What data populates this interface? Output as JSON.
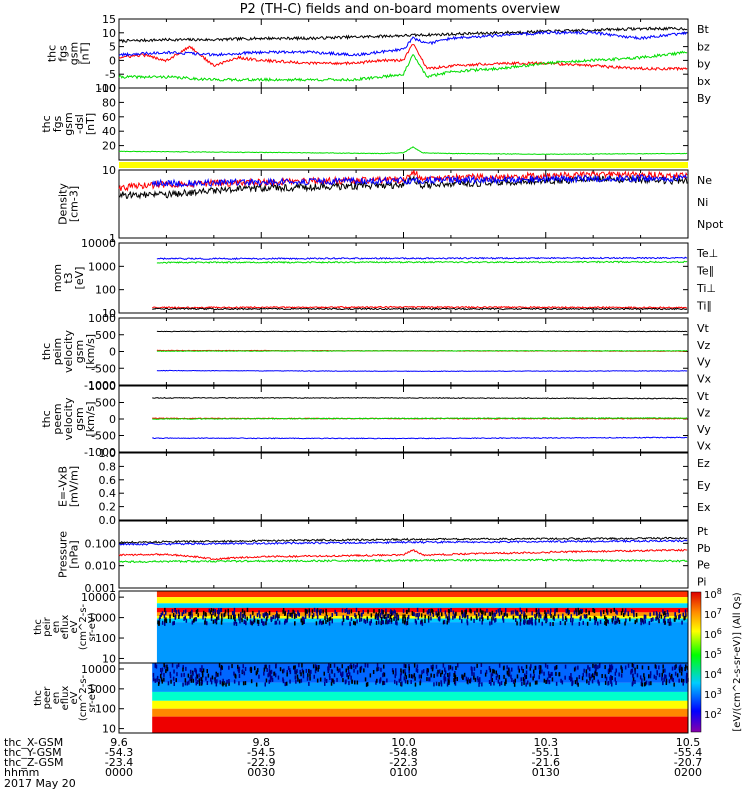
{
  "title": "P2 (TH-C) fields and on-board moments overview",
  "colors": {
    "black": "#000000",
    "red": "#ff0000",
    "green": "#00dd00",
    "blue": "#0000ff",
    "yellow": "#ffff00"
  },
  "chart_data": {
    "type": "line",
    "x_range": [
      0,
      120
    ],
    "x_ticks": [
      {
        "t": 0,
        "x_gsm": "9.6",
        "y_gsm": "-54.3",
        "z_gsm": "-23.4",
        "hhmm": "0000"
      },
      {
        "t": 30,
        "x_gsm": "9.8",
        "y_gsm": "-54.5",
        "z_gsm": "-22.9",
        "hhmm": "0030"
      },
      {
        "t": 60,
        "x_gsm": "10.0",
        "y_gsm": "-54.8",
        "z_gsm": "-22.3",
        "hhmm": "0100"
      },
      {
        "t": 90,
        "x_gsm": "10.3",
        "y_gsm": "-55.1",
        "z_gsm": "-21.6",
        "hhmm": "0130"
      },
      {
        "t": 120,
        "x_gsm": "10.5",
        "y_gsm": "-55.4",
        "z_gsm": "-20.7",
        "hhmm": "0200"
      }
    ],
    "x_row_labels": [
      "thc_X-GSM",
      "thc_Y-GSM",
      "thc_Z-GSM",
      "hhmm"
    ],
    "date_label": "2017 May 20",
    "panels": [
      {
        "id": "fgs",
        "ylabel": [
          "thc",
          "fgs",
          "gsm",
          "[nT]"
        ],
        "scale": "linear",
        "ylim": [
          -10,
          15
        ],
        "yticks": [
          "15",
          "10",
          "5",
          "0",
          "-5",
          "-10"
        ],
        "ytick_vals": [
          15,
          10,
          5,
          0,
          -5,
          -10
        ],
        "legend": [
          {
            "name": "Bt",
            "color": "black"
          },
          {
            "name": "bz",
            "color": "red"
          },
          {
            "name": "by",
            "color": "green"
          },
          {
            "name": "bx",
            "color": "blue"
          }
        ],
        "series": [
          {
            "name": "Bt",
            "color": "black",
            "t": [
              0,
              10,
              20,
              30,
              40,
              50,
              60,
              70,
              80,
              90,
              100,
              110,
              120
            ],
            "y": [
              7,
              7.5,
              7.5,
              8,
              8,
              8.5,
              9,
              9.5,
              10,
              10.5,
              11,
              11.5,
              11.5
            ]
          },
          {
            "name": "bz",
            "color": "red",
            "t": [
              0,
              5,
              10,
              15,
              20,
              25,
              30,
              40,
              50,
              55,
              60,
              62,
              65,
              70,
              80,
              90,
              100,
              110,
              120
            ],
            "y": [
              1,
              2,
              0,
              5,
              -2,
              1,
              0,
              -1,
              -1,
              0,
              0,
              6,
              -3,
              -2,
              -1,
              -1,
              -2,
              -3,
              -3
            ]
          },
          {
            "name": "by",
            "color": "green",
            "t": [
              0,
              10,
              20,
              30,
              40,
              50,
              55,
              60,
              62,
              65,
              70,
              80,
              90,
              100,
              110,
              120
            ],
            "y": [
              -6,
              -6,
              -7,
              -7,
              -7,
              -7,
              -6,
              -5,
              2,
              -6,
              -4,
              -3,
              -1,
              0,
              1,
              3
            ]
          },
          {
            "name": "bx",
            "color": "blue",
            "t": [
              0,
              10,
              20,
              30,
              40,
              50,
              60,
              62,
              65,
              70,
              80,
              90,
              100,
              105,
              110,
              120
            ],
            "y": [
              2,
              3,
              2,
              3,
              3,
              2,
              4,
              8,
              6,
              8,
              9,
              10,
              10,
              9,
              8,
              10
            ]
          }
        ]
      },
      {
        "id": "fgs-dsl",
        "ylabel": [
          "thc",
          "fgs",
          "gsm",
          "-dsl",
          "[nT]"
        ],
        "scale": "linear",
        "ylim": [
          0,
          100
        ],
        "yticks": [
          "100",
          "80",
          "60",
          "40",
          "20"
        ],
        "ytick_vals": [
          100,
          80,
          60,
          40,
          20
        ],
        "legend": [
          {
            "name": "By",
            "color": "green"
          }
        ],
        "series": [
          {
            "name": "By",
            "color": "green",
            "t": [
              0,
              20,
              40,
              55,
              60,
              62,
              64,
              70,
              90,
              120
            ],
            "y": [
              12,
              11,
              10,
              9,
              10,
              18,
              10,
              9,
              8,
              9
            ]
          }
        ]
      },
      {
        "id": "density",
        "ylabel": [
          "Density",
          "[cm-3]"
        ],
        "scale": "log",
        "ylim": [
          1,
          10
        ],
        "yticks": [
          "10",
          "1"
        ],
        "ytick_vals": [
          10,
          1
        ],
        "legend": [
          {
            "name": "Ne",
            "color": "red"
          },
          {
            "name": "Ni",
            "color": "black"
          },
          {
            "name": "Npot",
            "color": "blue"
          }
        ],
        "series": [
          {
            "name": "Ne",
            "color": "red",
            "t": [
              0,
              10,
              20,
              30,
              40,
              50,
              60,
              62,
              64,
              70,
              80,
              90,
              100,
              110,
              120
            ],
            "y": [
              5.5,
              6.2,
              6.4,
              6.6,
              6.8,
              7,
              7.2,
              9.5,
              7.3,
              7.6,
              8,
              8.2,
              8.4,
              8.4,
              8.2
            ]
          },
          {
            "name": "Ni",
            "color": "black",
            "t": [
              0,
              10,
              20,
              30,
              40,
              50,
              60,
              62,
              64,
              70,
              80,
              90,
              100,
              110,
              120
            ],
            "y": [
              4.3,
              4.3,
              5,
              5.4,
              5.6,
              5.8,
              6,
              7.5,
              6,
              6.2,
              6.6,
              7,
              7.2,
              7.2,
              6.8
            ]
          },
          {
            "name": "Npot",
            "color": "blue",
            "t": [
              7,
              30,
              60,
              90,
              120
            ],
            "y": [
              6.3,
              6.6,
              7,
              7.4,
              7.6
            ]
          }
        ]
      },
      {
        "id": "temp",
        "ylabel": [
          "mom",
          "t3",
          "[eV]"
        ],
        "scale": "log",
        "ylim": [
          10,
          10000
        ],
        "yticks": [
          "10000",
          "1000",
          "100",
          "10"
        ],
        "ytick_vals": [
          10000,
          1000,
          100,
          10
        ],
        "legend": [
          {
            "name": "Te⊥",
            "color": "red"
          },
          {
            "name": "Te∥",
            "color": "black"
          },
          {
            "name": "Ti⊥",
            "color": "blue"
          },
          {
            "name": "Ti∥",
            "color": "green"
          }
        ],
        "series": [
          {
            "name": "Ti⊥",
            "color": "blue",
            "t": [
              8,
              60,
              120
            ],
            "y": [
              2100,
              2200,
              2300
            ]
          },
          {
            "name": "Ti∥",
            "color": "green",
            "t": [
              8,
              60,
              120
            ],
            "y": [
              1450,
              1500,
              1550
            ]
          },
          {
            "name": "Te⊥",
            "color": "red",
            "t": [
              7,
              60,
              120
            ],
            "y": [
              17,
              18,
              17
            ]
          },
          {
            "name": "Te∥",
            "color": "black",
            "t": [
              7,
              60,
              120
            ],
            "y": [
              15,
              15,
              15
            ]
          }
        ]
      },
      {
        "id": "peim",
        "ylabel": [
          "thc",
          "peim",
          "velocity",
          "gsm",
          "[km/s]"
        ],
        "scale": "linear",
        "ylim": [
          -1000,
          1000
        ],
        "yticks": [
          "1000",
          "500",
          "0",
          "-500",
          "-1000"
        ],
        "ytick_vals": [
          1000,
          500,
          0,
          -500,
          -1000
        ],
        "legend": [
          {
            "name": "Vt",
            "color": "black"
          },
          {
            "name": "Vz",
            "color": "red"
          },
          {
            "name": "Vy",
            "color": "green"
          },
          {
            "name": "Vx",
            "color": "blue"
          }
        ],
        "series": [
          {
            "name": "Vt",
            "color": "black",
            "t": [
              8,
              60,
              120
            ],
            "y": [
              600,
              600,
              600
            ]
          },
          {
            "name": "Vz",
            "color": "red",
            "t": [
              8,
              60,
              120
            ],
            "y": [
              30,
              20,
              10
            ]
          },
          {
            "name": "Vy",
            "color": "green",
            "t": [
              8,
              60,
              120
            ],
            "y": [
              10,
              20,
              20
            ]
          },
          {
            "name": "Vx",
            "color": "blue",
            "t": [
              8,
              60,
              120
            ],
            "y": [
              -570,
              -590,
              -580
            ]
          }
        ]
      },
      {
        "id": "peem",
        "ylabel": [
          "thc",
          "peem",
          "velocity",
          "gsm",
          "[km/s]"
        ],
        "scale": "linear",
        "ylim": [
          -1000,
          1000
        ],
        "yticks": [
          "1000",
          "500",
          "0",
          "-500",
          "-1000"
        ],
        "ytick_vals": [
          1000,
          500,
          0,
          -500,
          -1000
        ],
        "legend": [
          {
            "name": "Vt",
            "color": "black"
          },
          {
            "name": "Vz",
            "color": "red"
          },
          {
            "name": "Vy",
            "color": "green"
          },
          {
            "name": "Vx",
            "color": "blue"
          }
        ],
        "series": [
          {
            "name": "Vt",
            "color": "black",
            "t": [
              7,
              60,
              120
            ],
            "y": [
              640,
              640,
              620
            ]
          },
          {
            "name": "Vz",
            "color": "red",
            "t": [
              7,
              60,
              120
            ],
            "y": [
              20,
              10,
              10
            ]
          },
          {
            "name": "Vy",
            "color": "green",
            "t": [
              7,
              60,
              120
            ],
            "y": [
              0,
              20,
              30
            ]
          },
          {
            "name": "Vx",
            "color": "blue",
            "t": [
              7,
              60,
              120
            ],
            "y": [
              -580,
              -590,
              -560
            ]
          }
        ]
      },
      {
        "id": "efield",
        "ylabel": [
          "E=-VxB",
          "[mV/m]"
        ],
        "scale": "linear",
        "ylim": [
          0,
          1
        ],
        "yticks": [
          "1.0",
          "0.8",
          "0.6",
          "0.4",
          "0.2",
          "0.0"
        ],
        "ytick_vals": [
          1,
          0.8,
          0.6,
          0.4,
          0.2,
          0
        ],
        "legend": [
          {
            "name": "Ez",
            "color": "red"
          },
          {
            "name": "Ey",
            "color": "green"
          },
          {
            "name": "Ex",
            "color": "blue"
          }
        ],
        "series": []
      },
      {
        "id": "pressure",
        "ylabel": [
          "Pressure",
          "[nPa]"
        ],
        "scale": "log",
        "ylim": [
          0.001,
          1
        ],
        "yticks": [
          "0.100",
          "0.010",
          "0.001"
        ],
        "ytick_vals": [
          0.1,
          0.01,
          0.001
        ],
        "legend": [
          {
            "name": "Pt",
            "color": "black"
          },
          {
            "name": "Pb",
            "color": "red"
          },
          {
            "name": "Pe",
            "color": "green"
          },
          {
            "name": "Pi",
            "color": "blue"
          }
        ],
        "series": [
          {
            "name": "Pt",
            "color": "black",
            "t": [
              0,
              30,
              60,
              90,
              120
            ],
            "y": [
              0.11,
              0.13,
              0.15,
              0.16,
              0.17
            ]
          },
          {
            "name": "Pi",
            "color": "blue",
            "t": [
              0,
              30,
              60,
              90,
              120
            ],
            "y": [
              0.09,
              0.1,
              0.11,
              0.12,
              0.13
            ]
          },
          {
            "name": "Pb",
            "color": "red",
            "t": [
              0,
              10,
              20,
              30,
              60,
              62,
              64,
              90,
              120
            ],
            "y": [
              0.03,
              0.032,
              0.02,
              0.025,
              0.03,
              0.05,
              0.03,
              0.04,
              0.05
            ]
          },
          {
            "name": "Pe",
            "color": "green",
            "t": [
              0,
              30,
              60,
              90,
              120
            ],
            "y": [
              0.015,
              0.016,
              0.017,
              0.018,
              0.016
            ]
          }
        ]
      }
    ],
    "spectrograms": [
      {
        "id": "peir",
        "ylabel": [
          "thc",
          "peir",
          "en",
          "eflux",
          "eV",
          "(cm^2-s-",
          "sr-eV)"
        ],
        "scale": "log",
        "ylim": [
          6,
          20000
        ],
        "yticks": [
          "10000",
          "1000",
          "100",
          "10"
        ],
        "ytick_vals": [
          10000,
          1000,
          100,
          10
        ],
        "data_start_t": 8
      },
      {
        "id": "peer",
        "ylabel": [
          "thc",
          "peer",
          "en",
          "eflux",
          "eV",
          "(cm^2-s-",
          "sr-eV)"
        ],
        "scale": "log",
        "ylim": [
          6,
          20000
        ],
        "yticks": [
          "10000",
          "1000",
          "100",
          "10"
        ],
        "ytick_vals": [
          10000,
          1000,
          100,
          10
        ],
        "data_start_t": 7
      }
    ],
    "colorbar": {
      "ticks": [
        "10^8",
        "10^7",
        "10^6",
        "10^5",
        "10^4",
        "10^3",
        "10^2"
      ],
      "label": "[eV/(cm^2-s-sr-eV)] (All Qs)"
    }
  }
}
